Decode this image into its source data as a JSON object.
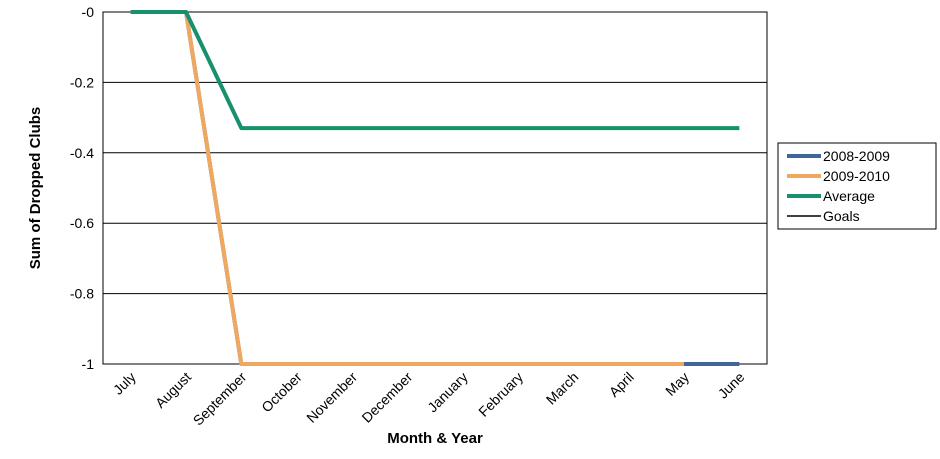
{
  "chart_data": {
    "type": "line",
    "x_label": "Month & Year",
    "y_label": "Sum of Dropped Clubs",
    "categories": [
      "July",
      "August",
      "September",
      "October",
      "November",
      "December",
      "January",
      "February",
      "March",
      "April",
      "May",
      "June"
    ],
    "series": [
      {
        "name": "2008-2009",
        "color": "#41659a",
        "width": 4,
        "values": [
          0,
          0,
          -1,
          -1,
          -1,
          -1,
          -1,
          -1,
          -1,
          -1,
          -1,
          -1
        ]
      },
      {
        "name": "2009-2010",
        "color": "#f0a860",
        "width": 4,
        "values": [
          0,
          0,
          -1,
          -1,
          -1,
          -1,
          -1,
          -1,
          -1,
          -1,
          -1,
          null
        ]
      },
      {
        "name": "Average",
        "color": "#17906e",
        "width": 4,
        "values": [
          0,
          0,
          -0.33,
          -0.33,
          -0.33,
          -0.33,
          -0.33,
          -0.33,
          -0.33,
          -0.33,
          -0.33,
          -0.33
        ]
      },
      {
        "name": "Goals",
        "color": "#000000",
        "width": 1.5,
        "values": [
          null,
          null,
          null,
          null,
          null,
          null,
          null,
          null,
          null,
          null,
          null,
          null
        ]
      }
    ],
    "ylim": [
      -1,
      0
    ],
    "yticks": [
      {
        "value": 0,
        "label": "-0"
      },
      -0.2,
      -0.4,
      -0.6,
      -0.8,
      -1
    ],
    "grid": true,
    "legend": "right"
  }
}
